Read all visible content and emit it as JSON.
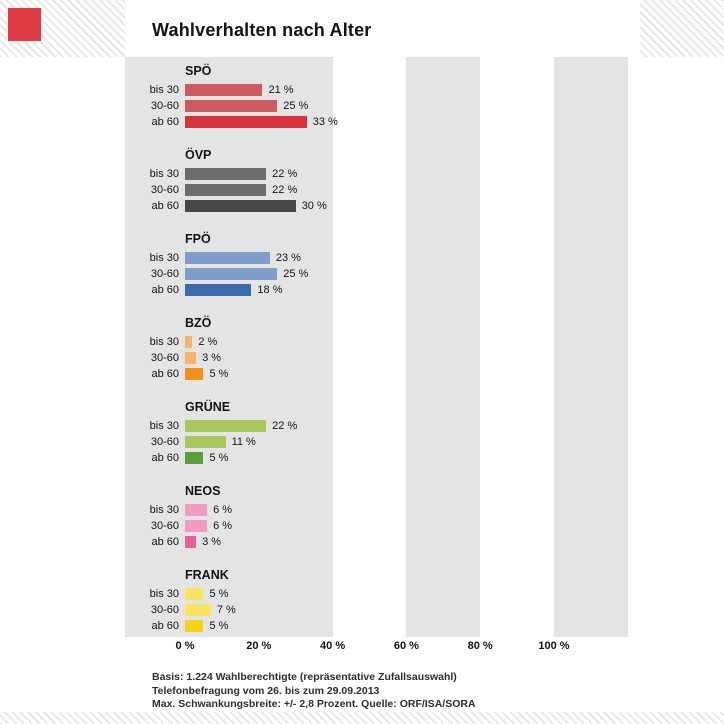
{
  "logo": {
    "color": "#dd3d43"
  },
  "header": {
    "title": "Wahlverhalten nach Alter"
  },
  "chart_data": {
    "type": "bar",
    "orientation": "horizontal",
    "title": "Wahlverhalten nach Alter",
    "age_groups": [
      "bis 30",
      "30-60",
      "ab 60"
    ],
    "x_tick_values": [
      0,
      20,
      40,
      60,
      80,
      100
    ],
    "x_ticks": [
      "0 %",
      "20 %",
      "40 %",
      "60 %",
      "80 %",
      "100 %"
    ],
    "xlim": [
      0,
      100
    ],
    "value_suffix": " %",
    "stripe_color": "#e4e4e4",
    "parties": [
      {
        "name": "SPÖ",
        "color_light": "#cd5a63",
        "color_dark": "#d9303e",
        "values": [
          21,
          25,
          33
        ]
      },
      {
        "name": "ÖVP",
        "color_light": "#6d6d6d",
        "color_dark": "#474747",
        "values": [
          22,
          22,
          30
        ]
      },
      {
        "name": "FPÖ",
        "color_light": "#7e9dc8",
        "color_dark": "#3a6cab",
        "values": [
          23,
          25,
          18
        ]
      },
      {
        "name": "BZÖ",
        "color_light": "#f3b56d",
        "color_dark": "#f2901c",
        "values": [
          2,
          3,
          5
        ]
      },
      {
        "name": "GRÜNE",
        "color_light": "#a9c65d",
        "color_dark": "#5d9e3c",
        "values": [
          22,
          11,
          5
        ]
      },
      {
        "name": "NEOS",
        "color_light": "#f29ac2",
        "color_dark": "#e85f9f",
        "values": [
          6,
          6,
          3
        ]
      },
      {
        "name": "FRANK",
        "color_light": "#f6e35e",
        "color_dark": "#f3d312",
        "values": [
          5,
          7,
          5
        ]
      }
    ]
  },
  "footer": {
    "line1": "Basis: 1.224 Wahlberechtigte (repräsentative Zufallsauswahl)",
    "line2": "Telefonbefragung vom 26. bis zum 29.09.2013",
    "line3": "Max. Schwankungsbreite: +/- 2,8 Prozent. Quelle: ORF/ISA/SORA"
  }
}
